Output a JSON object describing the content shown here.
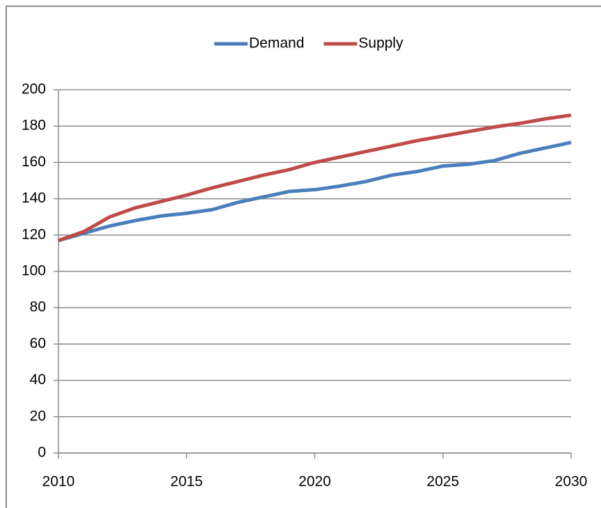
{
  "chart_data": {
    "type": "line",
    "x": [
      2010,
      2011,
      2012,
      2013,
      2014,
      2015,
      2016,
      2017,
      2018,
      2019,
      2020,
      2021,
      2022,
      2023,
      2024,
      2025,
      2026,
      2027,
      2028,
      2029,
      2030
    ],
    "series": [
      {
        "name": "Demand",
        "color": "#4a7ebb",
        "values": [
          117,
          121,
          125,
          128,
          130.5,
          132,
          134,
          138,
          141,
          144,
          145,
          147,
          149.5,
          153,
          155,
          158,
          159,
          161,
          165,
          168,
          171
        ]
      },
      {
        "name": "Supply",
        "color": "#be4b48",
        "values": [
          117,
          122,
          130,
          135,
          138.5,
          142,
          146,
          149.5,
          153,
          156,
          160,
          163,
          166,
          169,
          172,
          174.5,
          177,
          179.5,
          181.5,
          184,
          186
        ]
      }
    ],
    "xlim": [
      2010,
      2030
    ],
    "xticks": [
      2010,
      2015,
      2020,
      2025,
      2030
    ],
    "ylim": [
      0,
      200
    ],
    "yticks": [
      0,
      20,
      40,
      60,
      80,
      100,
      120,
      140,
      160,
      180,
      200
    ],
    "grid": true,
    "legend": "top"
  }
}
